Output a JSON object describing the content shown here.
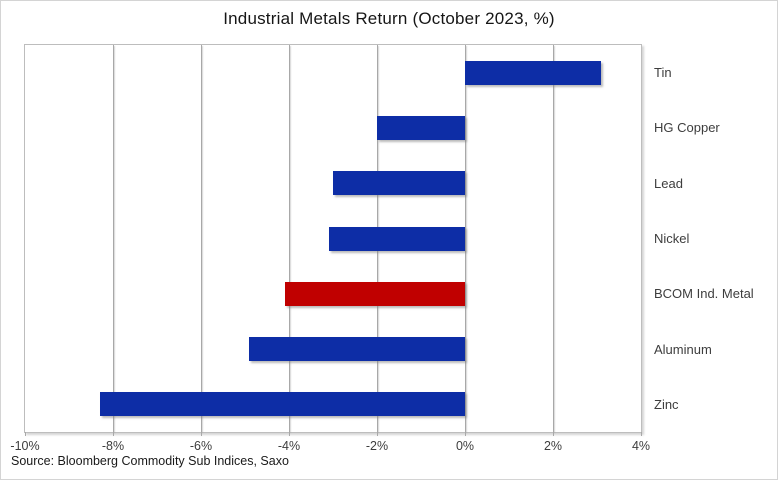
{
  "source": "Source: Bloomberg Commodity Sub Indices, Saxo",
  "colors": {
    "bar_blue": "#0d2da6",
    "bar_red": "#c00000",
    "gridline": "#a8a8a8",
    "plot_border": "#bdbdbd",
    "axis_text": "#3d3d3d",
    "title_text": "#161616"
  },
  "chart_data": {
    "type": "bar",
    "orientation": "horizontal",
    "title": "Industrial Metals Return (October 2023, %)",
    "categories": [
      "Tin",
      "HG Copper",
      "Lead",
      "Nickel",
      "BCOM Ind. Metal",
      "Aluminum",
      "Zinc"
    ],
    "values": [
      3.1,
      -2.0,
      -3.0,
      -3.1,
      -4.1,
      -4.9,
      -8.3
    ],
    "bar_colors": [
      "#0d2da6",
      "#0d2da6",
      "#0d2da6",
      "#0d2da6",
      "#c00000",
      "#0d2da6",
      "#0d2da6"
    ],
    "xlabel": "",
    "ylabel": "",
    "xlim": [
      -10,
      4
    ],
    "xticks": [
      -10,
      -8,
      -6,
      -4,
      -2,
      0,
      2,
      4
    ],
    "xtick_labels": [
      "-10%",
      "-8%",
      "-6%",
      "-4%",
      "-2%",
      "0%",
      "2%",
      "4%"
    ],
    "grid": "vertical-only",
    "legend": "none",
    "category_labels_position": "right"
  }
}
